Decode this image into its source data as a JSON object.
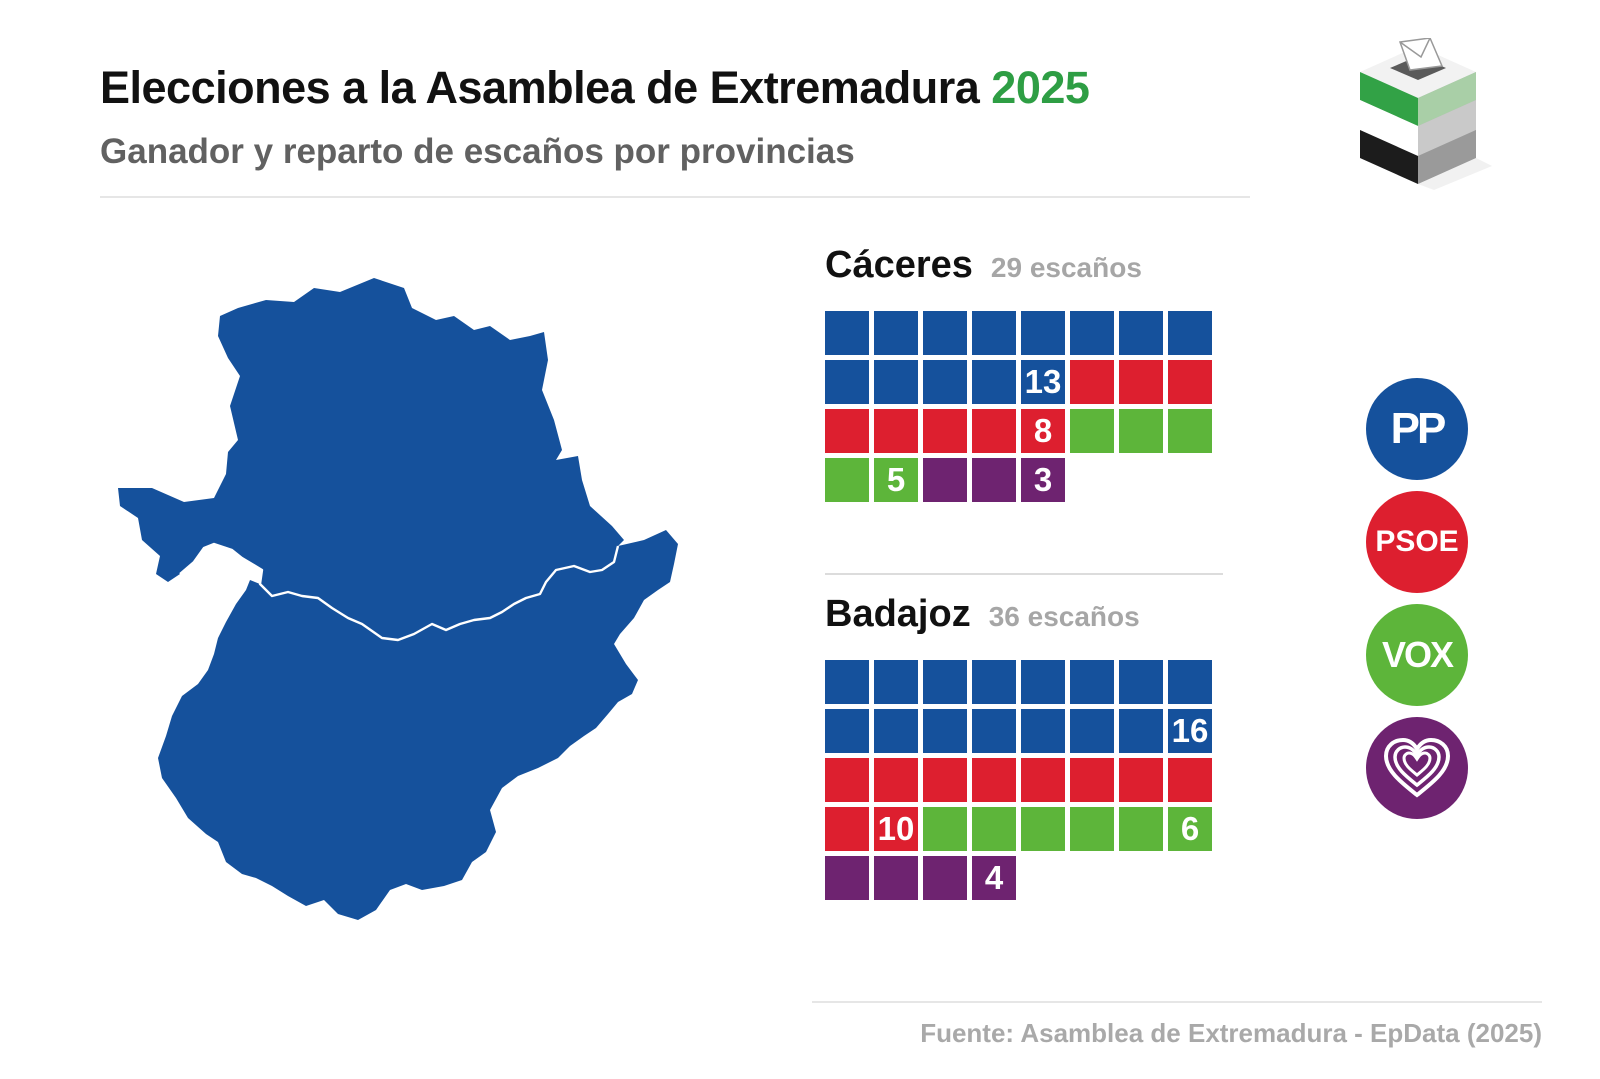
{
  "header": {
    "title": "Elecciones a la Asamblea de Extremadura",
    "year": "2025",
    "subtitle": "Ganador y reparto de escaños por provincias"
  },
  "colors": {
    "pp": "#15519c",
    "psoe": "#dd1f2f",
    "vox": "#5db53a",
    "podemos": "#6e2370",
    "map_fill": "#15519c",
    "year": "#2e9e44"
  },
  "map": {
    "winner": "PP",
    "provinces": [
      "Cáceres",
      "Badajoz"
    ]
  },
  "provinces": [
    {
      "name": "Cáceres",
      "seats_label": "29 escaños",
      "total": 29,
      "results": [
        {
          "party": "pp",
          "seats": 13,
          "label": "13"
        },
        {
          "party": "psoe",
          "seats": 8,
          "label": "8"
        },
        {
          "party": "vox",
          "seats": 5,
          "label": "5"
        },
        {
          "party": "podemos",
          "seats": 3,
          "label": "3"
        }
      ]
    },
    {
      "name": "Badajoz",
      "seats_label": "36 escaños",
      "total": 36,
      "results": [
        {
          "party": "pp",
          "seats": 16,
          "label": "16"
        },
        {
          "party": "psoe",
          "seats": 10,
          "label": "10"
        },
        {
          "party": "vox",
          "seats": 6,
          "label": "6"
        },
        {
          "party": "podemos",
          "seats": 4,
          "label": "4"
        }
      ]
    }
  ],
  "legend": [
    {
      "party": "pp",
      "logo_text": "PP",
      "icon": "pp-logo-icon"
    },
    {
      "party": "psoe",
      "logo_text": "PSOE",
      "icon": "psoe-logo-icon"
    },
    {
      "party": "vox",
      "logo_text": "VOX",
      "icon": "vox-logo-icon"
    },
    {
      "party": "podemos",
      "logo_text": "",
      "icon": "heart-logo-icon"
    }
  ],
  "footer": {
    "source": "Fuente: Asamblea de Extremadura - EpData (2025)"
  }
}
